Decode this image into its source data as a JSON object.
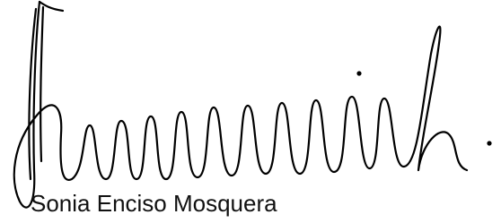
{
  "signature": {
    "name": "Sonia Enciso Mosquera"
  }
}
